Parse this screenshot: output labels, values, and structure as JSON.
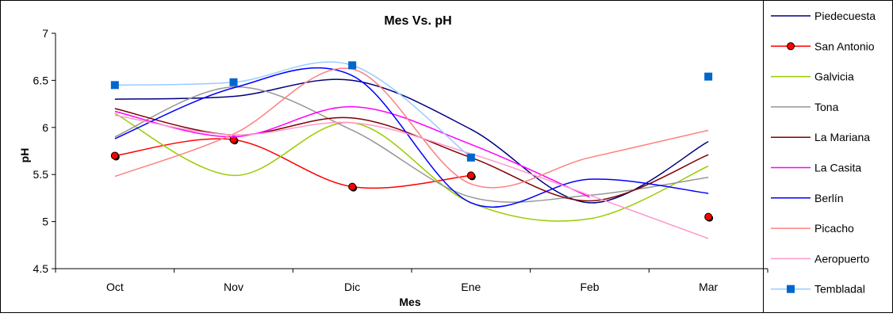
{
  "chart_data": {
    "type": "line",
    "title": "Mes Vs. pH",
    "xlabel": "Mes",
    "ylabel": "pH",
    "categories": [
      "Oct",
      "Nov",
      "Dic",
      "Ene",
      "Feb",
      "Mar"
    ],
    "ylim": [
      4.5,
      7
    ],
    "yticks": [
      "4.5",
      "5",
      "5.5",
      "6",
      "6.5",
      "7"
    ],
    "grid": false,
    "legend_position": "right",
    "series": [
      {
        "name": "Piedecuesta",
        "color": "#000080",
        "marker": "none",
        "smooth": true,
        "values": [
          6.3,
          6.33,
          6.5,
          5.98,
          5.2,
          5.85
        ]
      },
      {
        "name": "San Antonio",
        "color": "#FF0000",
        "marker": "circle",
        "marker_color": "#FF0000",
        "smooth": true,
        "values": [
          5.7,
          5.87,
          5.37,
          5.49,
          null,
          5.05
        ]
      },
      {
        "name": "Galvicia",
        "color": "#99CC00",
        "marker": "none",
        "smooth": true,
        "values": [
          6.15,
          5.49,
          6.05,
          5.2,
          5.03,
          5.59
        ]
      },
      {
        "name": "Tona",
        "color": "#969696",
        "marker": "none",
        "smooth": true,
        "values": [
          5.9,
          6.43,
          5.97,
          5.26,
          5.28,
          5.47
        ]
      },
      {
        "name": "La Mariana",
        "color": "#800000",
        "marker": "none",
        "smooth": true,
        "values": [
          6.2,
          5.92,
          6.1,
          5.68,
          5.22,
          5.71
        ]
      },
      {
        "name": "La Casita",
        "color": "#FF00FF",
        "marker": "none",
        "smooth": true,
        "values": [
          6.17,
          5.9,
          6.22,
          5.82,
          5.26,
          null
        ]
      },
      {
        "name": "Berlín",
        "color": "#0000FF",
        "marker": "none",
        "smooth": true,
        "values": [
          5.88,
          6.42,
          6.55,
          5.2,
          5.45,
          5.3
        ]
      },
      {
        "name": "Picacho",
        "color": "#FF8080",
        "marker": "none",
        "smooth": true,
        "values": [
          5.48,
          5.93,
          6.62,
          5.4,
          5.68,
          5.97
        ]
      },
      {
        "name": "Aeropuerto",
        "color": "#FF99CC",
        "marker": "none",
        "smooth": true,
        "values": [
          6.13,
          5.92,
          6.05,
          5.72,
          5.28,
          4.82
        ]
      },
      {
        "name": "Tembladal",
        "color": "#99CCFF",
        "marker": "square",
        "marker_color": "#0066CC",
        "smooth": true,
        "values": [
          6.45,
          6.48,
          6.66,
          5.68,
          null,
          6.54
        ]
      }
    ]
  }
}
